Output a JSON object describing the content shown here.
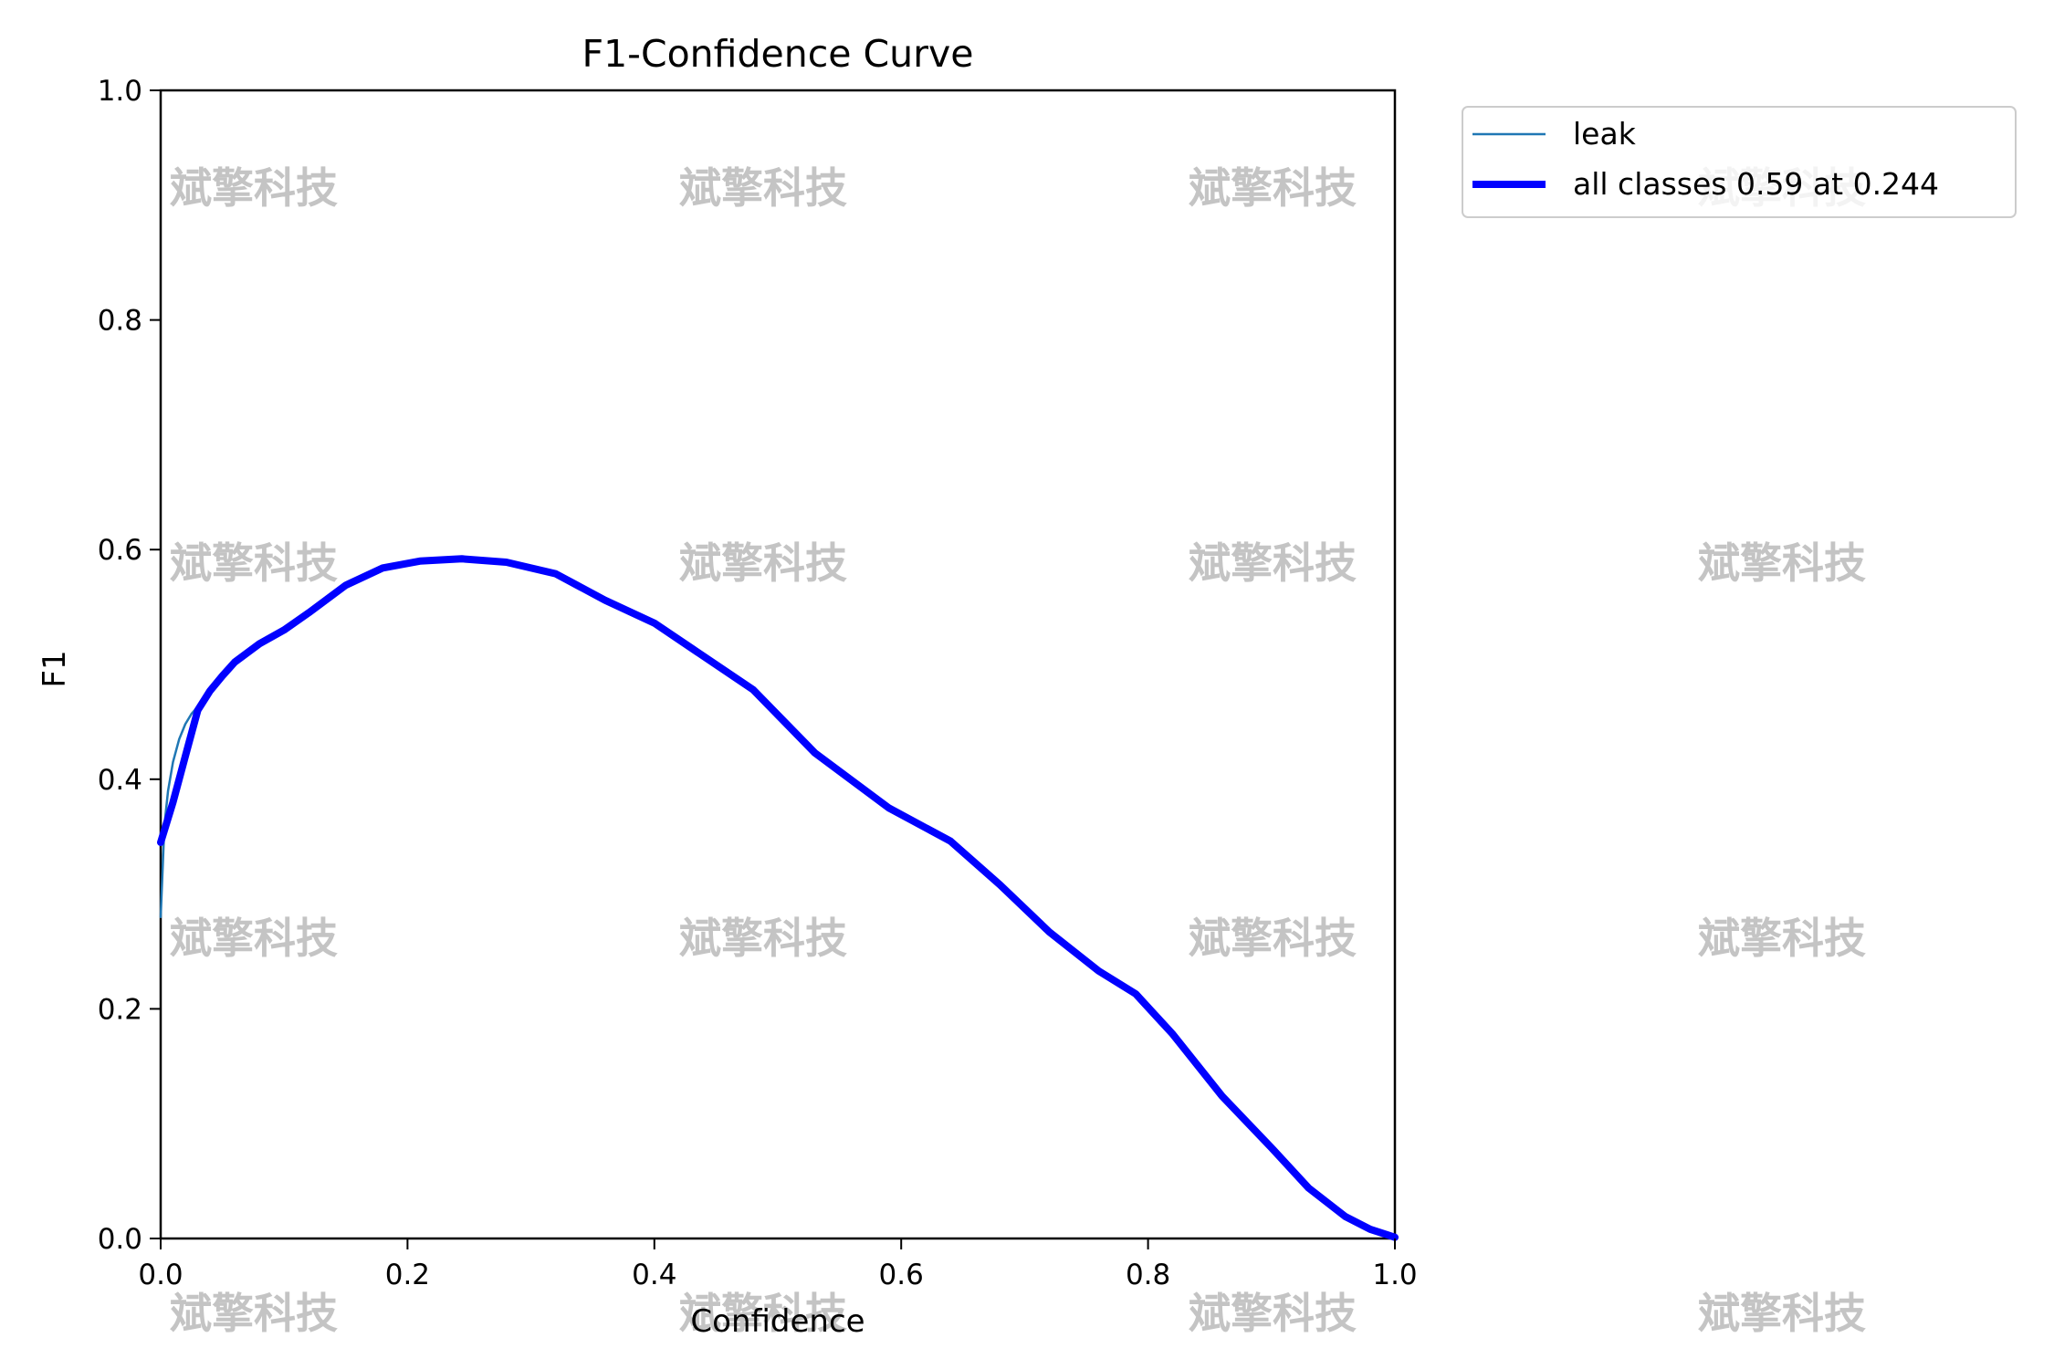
{
  "chart_data": {
    "type": "line",
    "title": "F1-Confidence Curve",
    "xlabel": "Confidence",
    "ylabel": "F1",
    "xlim": [
      0.0,
      1.0
    ],
    "ylim": [
      0.0,
      1.0
    ],
    "xticks": [
      "0.0",
      "0.2",
      "0.4",
      "0.6",
      "0.8",
      "1.0"
    ],
    "yticks": [
      "0.0",
      "0.2",
      "0.4",
      "0.6",
      "0.8",
      "1.0"
    ],
    "grid": false,
    "legend_position": "outside-top-right",
    "watermark_text": "斌擎科技",
    "series": [
      {
        "name": "leak",
        "color": "#1f77b4",
        "x": [
          0.0,
          0.003,
          0.006,
          0.01,
          0.015,
          0.02,
          0.025,
          0.03,
          0.04,
          0.05,
          0.06,
          0.08,
          0.1,
          0.12,
          0.15,
          0.18,
          0.21,
          0.244,
          0.28,
          0.32,
          0.36,
          0.4,
          0.44,
          0.48,
          0.53,
          0.59,
          0.64,
          0.68,
          0.72,
          0.76,
          0.79,
          0.82,
          0.86,
          0.9,
          0.93,
          0.96,
          0.98,
          1.0
        ],
        "y": [
          0.28,
          0.36,
          0.39,
          0.415,
          0.435,
          0.448,
          0.457,
          0.463,
          0.477,
          0.49,
          0.502,
          0.518,
          0.53,
          0.545,
          0.569,
          0.584,
          0.59,
          0.592,
          0.589,
          0.579,
          0.556,
          0.536,
          0.507,
          0.478,
          0.423,
          0.375,
          0.346,
          0.308,
          0.267,
          0.233,
          0.213,
          0.176,
          0.122,
          0.078,
          0.043,
          0.018,
          0.007,
          0.001
        ]
      },
      {
        "name": "all classes 0.59 at 0.244",
        "color": "#0000ff",
        "x": [
          0.0,
          0.01,
          0.02,
          0.03,
          0.04,
          0.05,
          0.06,
          0.08,
          0.1,
          0.12,
          0.15,
          0.18,
          0.21,
          0.244,
          0.28,
          0.32,
          0.36,
          0.4,
          0.44,
          0.48,
          0.53,
          0.59,
          0.64,
          0.68,
          0.72,
          0.76,
          0.79,
          0.82,
          0.86,
          0.9,
          0.93,
          0.96,
          0.98,
          1.0
        ],
        "y": [
          0.345,
          0.38,
          0.42,
          0.46,
          0.477,
          0.49,
          0.502,
          0.518,
          0.53,
          0.545,
          0.569,
          0.584,
          0.59,
          0.592,
          0.589,
          0.579,
          0.556,
          0.536,
          0.507,
          0.478,
          0.423,
          0.375,
          0.346,
          0.308,
          0.267,
          0.233,
          0.213,
          0.178,
          0.124,
          0.079,
          0.044,
          0.019,
          0.008,
          0.001
        ]
      }
    ]
  }
}
